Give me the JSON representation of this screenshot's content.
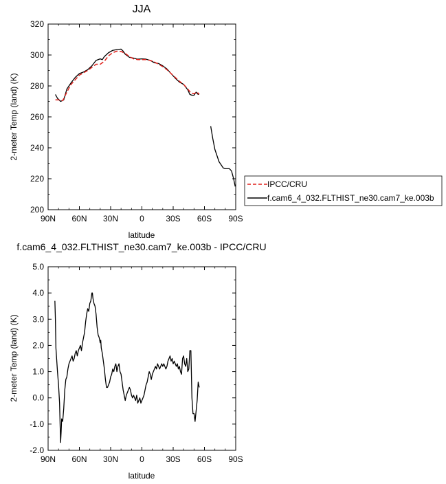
{
  "chart_data": [
    {
      "type": "line",
      "title": "JJA",
      "xlabel": "latitude",
      "ylabel": "2-meter Temp (land) (K)",
      "xlim": [
        90,
        -90
      ],
      "ylim": [
        200,
        320
      ],
      "x_ticks": [
        {
          "value": 90,
          "label": "90N"
        },
        {
          "value": 60,
          "label": "60N"
        },
        {
          "value": 30,
          "label": "30N"
        },
        {
          "value": 0,
          "label": "0"
        },
        {
          "value": -30,
          "label": "30S"
        },
        {
          "value": -60,
          "label": "60S"
        },
        {
          "value": -90,
          "label": "90S"
        }
      ],
      "y_ticks": [
        200,
        220,
        240,
        260,
        280,
        300,
        320
      ],
      "grid": false,
      "legend": "right",
      "series": [
        {
          "name": "IPCC/CRU",
          "color": "#e0211c",
          "dash": "dashed",
          "points": [
            [
              83,
              271
            ],
            [
              80,
              271
            ],
            [
              76,
              270.5
            ],
            [
              72,
              276
            ],
            [
              68,
              281
            ],
            [
              64,
              284
            ],
            [
              60,
              287
            ],
            [
              56,
              288.5
            ],
            [
              52,
              290
            ],
            [
              48,
              292
            ],
            [
              44,
              294
            ],
            [
              40,
              294
            ],
            [
              36,
              296
            ],
            [
              32,
              299.5
            ],
            [
              28,
              301.5
            ],
            [
              24,
              302.5
            ],
            [
              20,
              302.3
            ],
            [
              16,
              301
            ],
            [
              12,
              299
            ],
            [
              8,
              297.5
            ],
            [
              4,
              297
            ],
            [
              0,
              297
            ],
            [
              -4,
              297
            ],
            [
              -8,
              296.5
            ],
            [
              -12,
              295.5
            ],
            [
              -16,
              294
            ],
            [
              -20,
              292.5
            ],
            [
              -24,
              290.5
            ],
            [
              -28,
              288
            ],
            [
              -32,
              285.5
            ],
            [
              -36,
              283
            ],
            [
              -40,
              281
            ],
            [
              -44,
              278
            ],
            [
              -47,
              275.5
            ],
            [
              -50,
              275
            ],
            [
              -53,
              276
            ],
            [
              -55,
              274.5
            ]
          ]
        },
        {
          "name": "f.cam6_4_032.FLTHIST_ne30.cam7_ke.003b",
          "color": "#000000",
          "dash": "solid",
          "points": [
            [
              83,
              274.5
            ],
            [
              81,
              272
            ],
            [
              78,
              270
            ],
            [
              75,
              271
            ],
            [
              72,
              278
            ],
            [
              68,
              282
            ],
            [
              64,
              285.5
            ],
            [
              60,
              288
            ],
            [
              56,
              289
            ],
            [
              52,
              290.5
            ],
            [
              48,
              293
            ],
            [
              44,
              296.5
            ],
            [
              40,
              297.5
            ],
            [
              38,
              297
            ],
            [
              36,
              299
            ],
            [
              32,
              301.5
            ],
            [
              28,
              303
            ],
            [
              24,
              303.5
            ],
            [
              20,
              303.8
            ],
            [
              18,
              302.5
            ],
            [
              16,
              300.5
            ],
            [
              12,
              298.5
            ],
            [
              8,
              298
            ],
            [
              4,
              297.3
            ],
            [
              0,
              297.5
            ],
            [
              -4,
              297.3
            ],
            [
              -8,
              296.5
            ],
            [
              -12,
              295
            ],
            [
              -16,
              294.5
            ],
            [
              -20,
              293
            ],
            [
              -24,
              291
            ],
            [
              -28,
              288
            ],
            [
              -32,
              285
            ],
            [
              -36,
              282.5
            ],
            [
              -40,
              281
            ],
            [
              -44,
              277.5
            ],
            [
              -46,
              274.5
            ],
            [
              -48,
              274
            ],
            [
              -50,
              274
            ],
            [
              -52,
              276
            ],
            [
              -54,
              274.5
            ],
            [
              -55,
              275
            ]
          ]
        },
        {
          "name": "f.cam6_4_032.FLTHIST_ne30.cam7_ke.003b",
          "color": "#000000",
          "dash": "solid",
          "points": [
            [
              -66,
              254
            ],
            [
              -68,
              246
            ],
            [
              -70,
              239
            ],
            [
              -72,
              235
            ],
            [
              -74,
              231
            ],
            [
              -76,
              229
            ],
            [
              -78,
              227
            ],
            [
              -80,
              226.5
            ],
            [
              -82,
              226.5
            ],
            [
              -84,
              226.5
            ],
            [
              -86,
              225
            ],
            [
              -88,
              220
            ],
            [
              -89.5,
              215
            ]
          ]
        }
      ]
    },
    {
      "type": "line",
      "title": "f.cam6_4_032.FLTHIST_ne30.cam7_ke.003b - IPCC/CRU",
      "xlabel": "latitude",
      "ylabel": "2-meter Temp (land) (K)",
      "xlim": [
        90,
        -90
      ],
      "ylim": [
        -2.0,
        5.0
      ],
      "x_ticks": [
        {
          "value": 90,
          "label": "90N"
        },
        {
          "value": 60,
          "label": "60N"
        },
        {
          "value": 30,
          "label": "30N"
        },
        {
          "value": 0,
          "label": "0"
        },
        {
          "value": -30,
          "label": "30S"
        },
        {
          "value": -60,
          "label": "60S"
        },
        {
          "value": -90,
          "label": "90S"
        }
      ],
      "y_ticks": [
        {
          "value": -2,
          "label": "-2.0"
        },
        {
          "value": -1,
          "label": "-1.0"
        },
        {
          "value": 0,
          "label": "0.0"
        },
        {
          "value": 1,
          "label": "1.0"
        },
        {
          "value": 2,
          "label": "2.0"
        },
        {
          "value": 3,
          "label": "3.0"
        },
        {
          "value": 4,
          "label": "4.0"
        },
        {
          "value": 5,
          "label": "5.0"
        }
      ],
      "grid": false,
      "series": [
        {
          "color": "#000000",
          "dash": "solid",
          "points": [
            [
              83.5,
              3.7
            ],
            [
              83,
              3.0
            ],
            [
              82.5,
              1.9
            ],
            [
              82,
              1.6
            ],
            [
              81,
              1.0
            ],
            [
              80,
              0.5
            ],
            [
              79,
              -0.2
            ],
            [
              78.5,
              -1.0
            ],
            [
              78,
              -1.7
            ],
            [
              77.5,
              -1.3
            ],
            [
              77,
              -0.8
            ],
            [
              76,
              -0.9
            ],
            [
              75,
              -0.4
            ],
            [
              74,
              0.3
            ],
            [
              73,
              0.7
            ],
            [
              72,
              0.8
            ],
            [
              71,
              1.1
            ],
            [
              70,
              1.3
            ],
            [
              69,
              1.4
            ],
            [
              68,
              1.5
            ],
            [
              67,
              1.6
            ],
            [
              66,
              1.4
            ],
            [
              65,
              1.5
            ],
            [
              64,
              1.7
            ],
            [
              63,
              1.8
            ],
            [
              62,
              1.6
            ],
            [
              61,
              1.8
            ],
            [
              60,
              1.9
            ],
            [
              59,
              2.0
            ],
            [
              58,
              1.8
            ],
            [
              57,
              2.1
            ],
            [
              56,
              2.3
            ],
            [
              55,
              2.5
            ],
            [
              54,
              2.9
            ],
            [
              53,
              3.2
            ],
            [
              52,
              3.4
            ],
            [
              51,
              3.3
            ],
            [
              50,
              3.6
            ],
            [
              49,
              3.7
            ],
            [
              48,
              4.0
            ],
            [
              47.5,
              4.0
            ],
            [
              47,
              3.8
            ],
            [
              46,
              3.6
            ],
            [
              45,
              3.5
            ],
            [
              44,
              3.2
            ],
            [
              43,
              2.7
            ],
            [
              42,
              2.4
            ],
            [
              41,
              2.3
            ],
            [
              40,
              2.1
            ],
            [
              39.5,
              2.2
            ],
            [
              39,
              1.9
            ],
            [
              38,
              1.7
            ],
            [
              37,
              1.4
            ],
            [
              36,
              1.1
            ],
            [
              35,
              0.7
            ],
            [
              34,
              0.4
            ],
            [
              33,
              0.4
            ],
            [
              32,
              0.5
            ],
            [
              31,
              0.6
            ],
            [
              30,
              0.8
            ],
            [
              29,
              0.9
            ],
            [
              28,
              1.1
            ],
            [
              27,
              1.0
            ],
            [
              26,
              1.2
            ],
            [
              25,
              1.3
            ],
            [
              24,
              1.0
            ],
            [
              23,
              1.2
            ],
            [
              22,
              1.3
            ],
            [
              21,
              1.0
            ],
            [
              20,
              0.9
            ],
            [
              19,
              0.6
            ],
            [
              18,
              0.3
            ],
            [
              17,
              0.1
            ],
            [
              16,
              -0.1
            ],
            [
              15,
              0.1
            ],
            [
              14,
              0.2
            ],
            [
              13,
              0.3
            ],
            [
              12,
              0.4
            ],
            [
              11,
              0.3
            ],
            [
              10,
              0.1
            ],
            [
              9,
              0.0
            ],
            [
              8,
              0.1
            ],
            [
              7,
              0.0
            ],
            [
              6,
              -0.1
            ],
            [
              5,
              0.1
            ],
            [
              4,
              -0.2
            ],
            [
              3,
              -0.1
            ],
            [
              2,
              0.0
            ],
            [
              1,
              -0.2
            ],
            [
              0,
              -0.1
            ],
            [
              -1,
              0.0
            ],
            [
              -2,
              0.1
            ],
            [
              -3,
              0.3
            ],
            [
              -4,
              0.5
            ],
            [
              -5,
              0.6
            ],
            [
              -6,
              0.8
            ],
            [
              -7,
              1.0
            ],
            [
              -8,
              0.9
            ],
            [
              -9,
              0.7
            ],
            [
              -10,
              0.9
            ],
            [
              -11,
              1.0
            ],
            [
              -12,
              1.1
            ],
            [
              -13,
              1.2
            ],
            [
              -14,
              1.1
            ],
            [
              -15,
              1.3
            ],
            [
              -16,
              1.2
            ],
            [
              -17,
              1.1
            ],
            [
              -18,
              1.2
            ],
            [
              -19,
              1.3
            ],
            [
              -20,
              1.2
            ],
            [
              -21,
              1.3
            ],
            [
              -22,
              1.2
            ],
            [
              -23,
              1.1
            ],
            [
              -24,
              1.2
            ],
            [
              -25,
              1.4
            ],
            [
              -26,
              1.5
            ],
            [
              -27,
              1.6
            ],
            [
              -28,
              1.4
            ],
            [
              -29,
              1.5
            ],
            [
              -30,
              1.3
            ],
            [
              -31,
              1.4
            ],
            [
              -32,
              1.3
            ],
            [
              -33,
              1.2
            ],
            [
              -34,
              1.3
            ],
            [
              -35,
              1.1
            ],
            [
              -36,
              1.2
            ],
            [
              -37,
              1.0
            ],
            [
              -38,
              0.9
            ],
            [
              -39,
              1.5
            ],
            [
              -40,
              1.6
            ],
            [
              -41,
              1.3
            ],
            [
              -42,
              1.2
            ],
            [
              -43,
              1.5
            ],
            [
              -44,
              1.0
            ],
            [
              -45,
              1.1
            ],
            [
              -46,
              1.8
            ],
            [
              -47,
              1.8
            ],
            [
              -48,
              0.0
            ],
            [
              -49,
              -0.6
            ],
            [
              -50,
              -0.6
            ],
            [
              -51,
              -0.9
            ],
            [
              -52,
              -0.5
            ],
            [
              -53,
              -0.1
            ],
            [
              -54,
              0.6
            ],
            [
              -55,
              0.4
            ]
          ]
        }
      ]
    }
  ],
  "legend_entries": [
    {
      "label": "IPCC/CRU",
      "color": "#e0211c",
      "dash": "dashed"
    },
    {
      "label": "f.cam6_4_032.FLTHIST_ne30.cam7_ke.003b",
      "color": "#000000",
      "dash": "solid"
    }
  ]
}
